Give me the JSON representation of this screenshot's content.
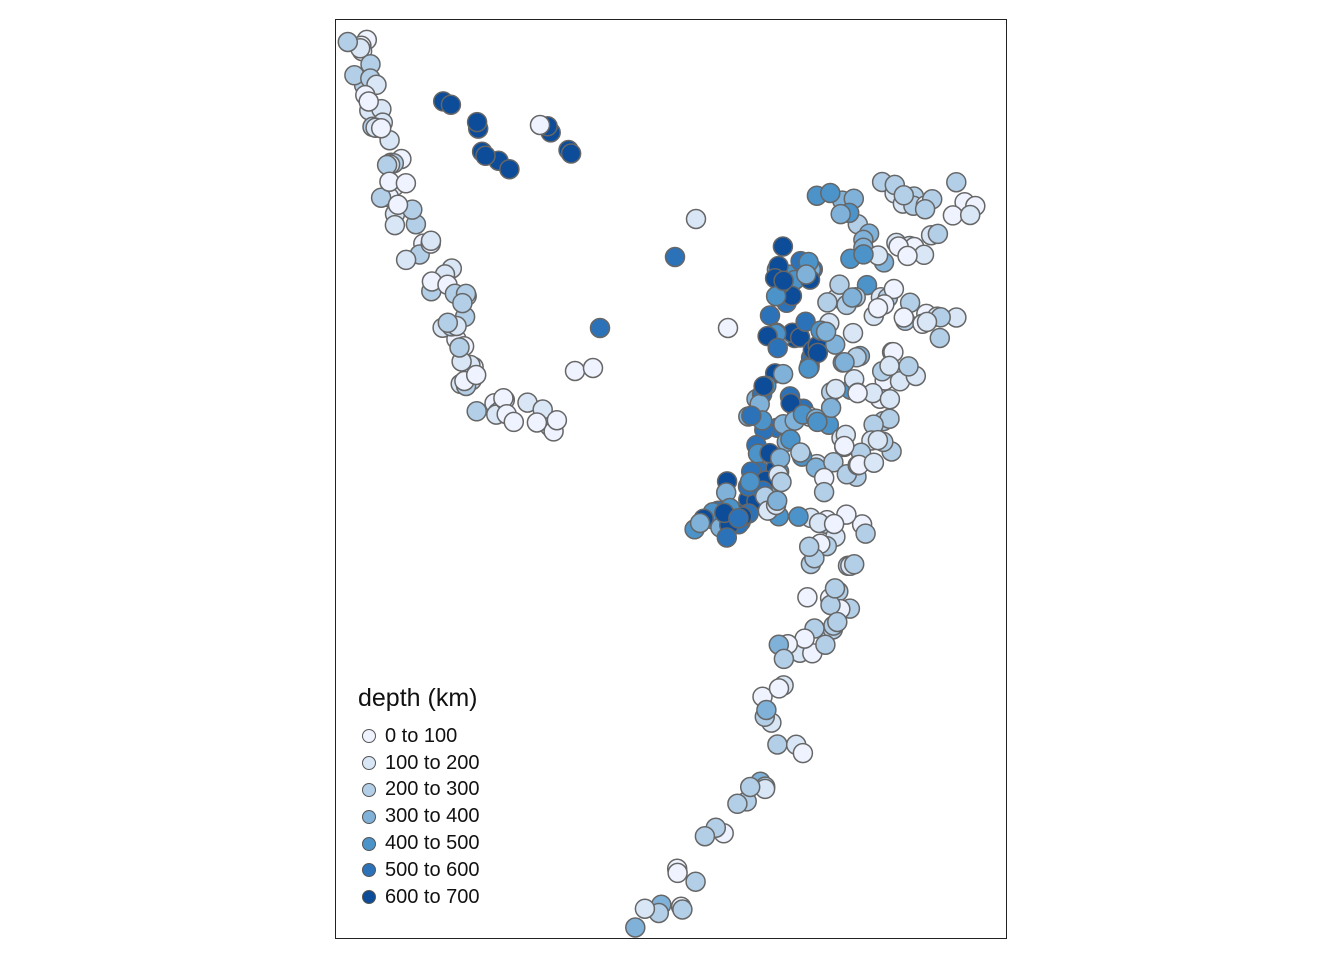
{
  "map": {
    "legend": {
      "title": "depth (km)",
      "classes": [
        {
          "label": "0 to 100",
          "color": "#eff3ff"
        },
        {
          "label": "100 to 200",
          "color": "#d8e6f6"
        },
        {
          "label": "200 to 300",
          "color": "#b3cfe8"
        },
        {
          "label": "300 to 400",
          "color": "#7fb1d9"
        },
        {
          "label": "400 to 500",
          "color": "#4b93c9"
        },
        {
          "label": "500 to 600",
          "color": "#2c72b8"
        },
        {
          "label": "600 to 700",
          "color": "#0c4c98"
        }
      ]
    },
    "point_border": "#666666",
    "frame_color": "#222222"
  }
}
